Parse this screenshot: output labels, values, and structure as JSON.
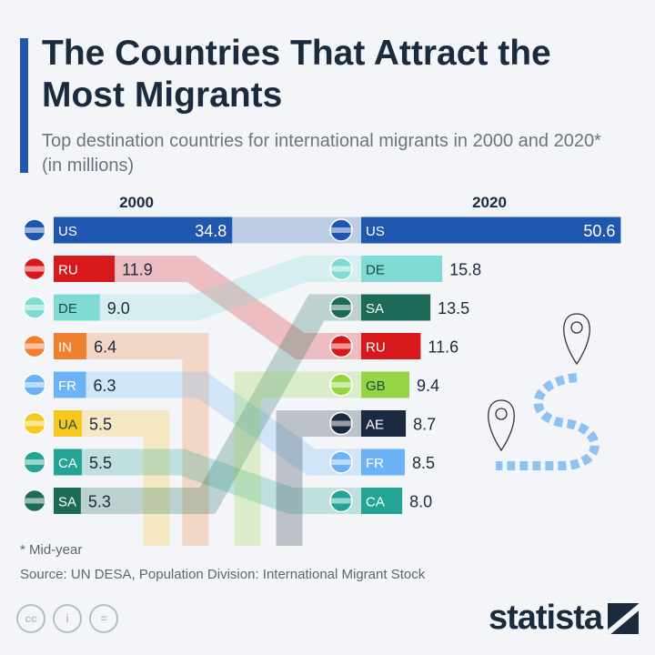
{
  "title": "The Countries That Attract the Most Migrants",
  "subtitle": "Top destination countries for international migrants in 2000 and 2020* (in millions)",
  "chart_data": {
    "type": "bar",
    "title": "The Countries That Attract the Most Migrants",
    "subtitle": "Top destination countries for international migrants in 2000 and 2020* (in millions)",
    "unit": "millions",
    "series": [
      {
        "name": "2000",
        "items": [
          {
            "code": "US",
            "value": 34.8
          },
          {
            "code": "RU",
            "value": 11.9
          },
          {
            "code": "DE",
            "value": 9.0
          },
          {
            "code": "IN",
            "value": 6.4
          },
          {
            "code": "FR",
            "value": 6.3
          },
          {
            "code": "UA",
            "value": 5.5
          },
          {
            "code": "CA",
            "value": 5.5
          },
          {
            "code": "SA",
            "value": 5.3
          }
        ]
      },
      {
        "name": "2020",
        "items": [
          {
            "code": "US",
            "value": 50.6
          },
          {
            "code": "DE",
            "value": 15.8
          },
          {
            "code": "SA",
            "value": 13.5
          },
          {
            "code": "RU",
            "value": 11.6
          },
          {
            "code": "GB",
            "value": 9.4
          },
          {
            "code": "AE",
            "value": 8.7
          },
          {
            "code": "FR",
            "value": 8.5
          },
          {
            "code": "CA",
            "value": 8.0
          }
        ]
      }
    ],
    "colors": {
      "US": "#1f56b0",
      "RU": "#d7191c",
      "DE": "#7fdad2",
      "IN": "#f07f2e",
      "FR": "#6cb2f6",
      "UA": "#f7c81e",
      "CA": "#23a494",
      "SA": "#1c6b58",
      "GB": "#95d442",
      "AE": "#1b2a40"
    }
  },
  "footnote": "* Mid-year",
  "source": "Source: UN DESA, Population Division: International Migrant Stock",
  "license_icons": [
    "cc",
    "by",
    "nd"
  ],
  "brand": "statista"
}
